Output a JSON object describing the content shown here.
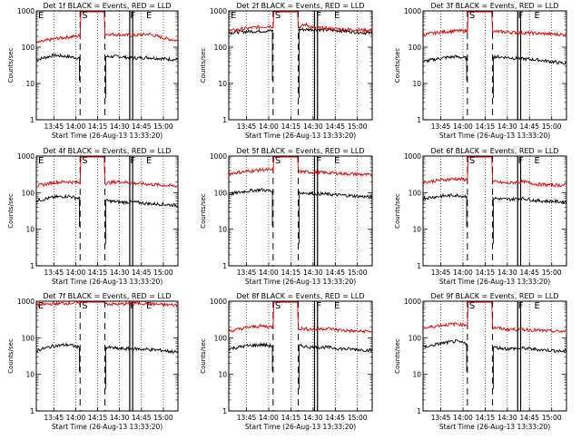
{
  "chart_data": [
    {
      "id": "p1",
      "type": "line",
      "title": "Det 1f BLACK = Events, RED = LLD",
      "xlabel": "Start Time (26-Aug-13 13:33:20)",
      "ylabel": "Counts/sec",
      "yscale": "log",
      "ylim": [
        1,
        1000
      ],
      "xlim": [
        "13:33",
        "15:10"
      ],
      "x_ticks": [
        "13:45",
        "14:00",
        "14:15",
        "14:30",
        "14:45",
        "15:00"
      ],
      "y_ticks": [
        "1",
        "10",
        "100",
        "1000"
      ],
      "markers": [
        {
          "label": "E",
          "time": "13:33"
        },
        {
          "label": "S",
          "time": "14:03"
        },
        {
          "label": "F",
          "time": "14:36"
        },
        {
          "label": "E",
          "time": "14:47"
        }
      ],
      "dashed_lines": [
        "14:03",
        "14:20"
      ],
      "solid_lines": [
        "14:37",
        "14:39"
      ],
      "series": [
        {
          "name": "Events",
          "color": "#000000",
          "x": [
            "13:33",
            "13:45",
            "13:55",
            "14:02",
            "14:21",
            "14:30",
            "14:40",
            "14:50",
            "15:00",
            "15:10"
          ],
          "y": [
            45,
            60,
            55,
            50,
            55,
            55,
            50,
            52,
            48,
            45
          ]
        },
        {
          "name": "LLD",
          "color": "#e00000",
          "x": [
            "13:33",
            "13:45",
            "13:55",
            "14:00",
            "14:20",
            "14:30",
            "14:40",
            "14:50",
            "15:00",
            "15:10"
          ],
          "y": [
            130,
            170,
            190,
            200,
            230,
            220,
            210,
            230,
            180,
            150
          ]
        }
      ]
    },
    {
      "id": "p2",
      "type": "line",
      "title": "Det 2f BLACK = Events, RED = LLD",
      "xlabel": "Start Time (26-Aug-13 13:33:20)",
      "ylabel": "Counts/sec",
      "yscale": "log",
      "ylim": [
        1,
        1000
      ],
      "xlim": [
        "13:33",
        "15:10"
      ],
      "x_ticks": [
        "13:45",
        "14:00",
        "14:15",
        "14:30",
        "14:45",
        "15:00"
      ],
      "y_ticks": [
        "1",
        "10",
        "100",
        "1000"
      ],
      "markers": [
        {
          "label": "E",
          "time": "13:33"
        },
        {
          "label": "S",
          "time": "14:03"
        },
        {
          "label": "F",
          "time": "14:31"
        },
        {
          "label": "E",
          "time": "14:43"
        }
      ],
      "dashed_lines": [
        "14:03",
        "14:20"
      ],
      "solid_lines": [
        "14:31",
        "14:33"
      ],
      "series": [
        {
          "name": "Events",
          "color": "#000000",
          "x": [
            "13:33",
            "13:45",
            "14:00",
            "14:15",
            "14:30",
            "14:45",
            "15:00",
            "15:10"
          ],
          "y": [
            250,
            270,
            280,
            300,
            310,
            290,
            260,
            240
          ]
        },
        {
          "name": "LLD",
          "color": "#e00000",
          "x": [
            "13:33",
            "13:45",
            "14:00",
            "14:20",
            "14:25",
            "14:30",
            "14:45",
            "15:00",
            "15:10"
          ],
          "y": [
            280,
            330,
            380,
            350,
            420,
            350,
            320,
            300,
            290
          ]
        }
      ]
    },
    {
      "id": "p3",
      "type": "line",
      "title": "Det 3f BLACK = Events, RED = LLD",
      "xlabel": "Start Time (26-Aug-13 13:33:20)",
      "ylabel": "Counts/sec",
      "yscale": "log",
      "ylim": [
        1,
        1000
      ],
      "xlim": [
        "13:33",
        "15:10"
      ],
      "x_ticks": [
        "13:45",
        "14:00",
        "14:15",
        "14:30",
        "14:45",
        "15:00"
      ],
      "y_ticks": [
        "1",
        "10",
        "100",
        "1000"
      ],
      "markers": [
        {
          "label": "S",
          "time": "14:03"
        },
        {
          "label": "F",
          "time": "14:36"
        },
        {
          "label": "E",
          "time": "14:47"
        }
      ],
      "dashed_lines": [
        "14:03",
        "14:20"
      ],
      "solid_lines": [
        "14:37",
        "14:39"
      ],
      "series": [
        {
          "name": "Events",
          "color": "#000000",
          "x": [
            "13:33",
            "13:45",
            "13:55",
            "14:02",
            "14:21",
            "14:30",
            "14:40",
            "14:50",
            "15:00",
            "15:10"
          ],
          "y": [
            40,
            50,
            55,
            50,
            55,
            52,
            48,
            45,
            40,
            35
          ]
        },
        {
          "name": "LLD",
          "color": "#e00000",
          "x": [
            "13:33",
            "13:45",
            "13:55",
            "14:00",
            "14:20",
            "14:30",
            "14:40",
            "14:50",
            "15:00",
            "15:10"
          ],
          "y": [
            220,
            260,
            280,
            280,
            270,
            260,
            250,
            240,
            230,
            220
          ]
        }
      ]
    },
    {
      "id": "p4",
      "type": "line",
      "title": "Det 4f BLACK = Events, RED = LLD",
      "xlabel": "Start Time (26-Aug-13 13:33:20)",
      "ylabel": "Counts/sec",
      "yscale": "log",
      "ylim": [
        1,
        1000
      ],
      "xlim": [
        "13:33",
        "15:10"
      ],
      "x_ticks": [
        "13:45",
        "14:00",
        "14:15",
        "14:30",
        "14:45",
        "15:00"
      ],
      "y_ticks": [
        "1",
        "10",
        "100",
        "1000"
      ],
      "markers": [
        {
          "label": "E",
          "time": "13:33"
        },
        {
          "label": "S",
          "time": "14:03"
        },
        {
          "label": "F",
          "time": "14:36"
        },
        {
          "label": "E",
          "time": "14:47"
        }
      ],
      "dashed_lines": [
        "14:03",
        "14:20"
      ],
      "solid_lines": [
        "14:37",
        "14:39"
      ],
      "series": [
        {
          "name": "Events",
          "color": "#000000",
          "x": [
            "13:33",
            "13:45",
            "13:55",
            "14:02",
            "14:21",
            "14:30",
            "14:40",
            "14:50",
            "15:00",
            "15:10"
          ],
          "y": [
            60,
            75,
            80,
            70,
            60,
            55,
            55,
            50,
            48,
            45
          ]
        },
        {
          "name": "LLD",
          "color": "#e00000",
          "x": [
            "13:33",
            "13:45",
            "13:55",
            "14:00",
            "14:20",
            "14:30",
            "14:40",
            "14:50",
            "15:00",
            "15:10"
          ],
          "y": [
            150,
            190,
            200,
            190,
            180,
            200,
            180,
            170,
            160,
            150
          ]
        }
      ]
    },
    {
      "id": "p5",
      "type": "line",
      "title": "Det 5f BLACK = Events, RED = LLD",
      "xlabel": "Start Time (26-Aug-13 13:33:20)",
      "ylabel": "Counts/sec",
      "yscale": "log",
      "ylim": [
        1,
        1000
      ],
      "xlim": [
        "13:33",
        "15:10"
      ],
      "x_ticks": [
        "13:45",
        "14:00",
        "14:15",
        "14:30",
        "14:45",
        "15:00"
      ],
      "y_ticks": [
        "1",
        "10",
        "100",
        "1000"
      ],
      "markers": [
        {
          "label": "S",
          "time": "14:03"
        },
        {
          "label": "F",
          "time": "14:31"
        },
        {
          "label": "E",
          "time": "14:43"
        }
      ],
      "dashed_lines": [
        "14:03",
        "14:20"
      ],
      "solid_lines": [
        "14:31",
        "14:33"
      ],
      "series": [
        {
          "name": "Events",
          "color": "#000000",
          "x": [
            "13:33",
            "13:45",
            "13:55",
            "14:02",
            "14:21",
            "14:30",
            "14:40",
            "14:50",
            "15:00",
            "15:10"
          ],
          "y": [
            90,
            110,
            120,
            110,
            100,
            95,
            90,
            85,
            80,
            75
          ]
        },
        {
          "name": "LLD",
          "color": "#e00000",
          "x": [
            "13:33",
            "13:45",
            "13:55",
            "14:00",
            "14:20",
            "14:30",
            "14:40",
            "14:50",
            "15:00",
            "15:10"
          ],
          "y": [
            330,
            380,
            420,
            420,
            380,
            360,
            350,
            330,
            320,
            300
          ]
        }
      ]
    },
    {
      "id": "p6",
      "type": "line",
      "title": "Det 6f BLACK = Events, RED = LLD",
      "xlabel": "Start Time (26-Aug-13 13:33:20)",
      "ylabel": "Counts/sec",
      "yscale": "log",
      "ylim": [
        1,
        1000
      ],
      "xlim": [
        "13:33",
        "15:10"
      ],
      "x_ticks": [
        "13:45",
        "14:00",
        "14:15",
        "14:30",
        "14:45",
        "15:00"
      ],
      "y_ticks": [
        "1",
        "10",
        "100",
        "1000"
      ],
      "markers": [
        {
          "label": "S",
          "time": "14:03"
        },
        {
          "label": "F",
          "time": "14:36"
        },
        {
          "label": "E",
          "time": "14:47"
        }
      ],
      "dashed_lines": [
        "14:03",
        "14:20"
      ],
      "solid_lines": [
        "14:37",
        "14:39"
      ],
      "series": [
        {
          "name": "Events",
          "color": "#000000",
          "x": [
            "13:33",
            "13:45",
            "13:55",
            "14:02",
            "14:21",
            "14:30",
            "14:40",
            "14:50",
            "15:00",
            "15:10"
          ],
          "y": [
            70,
            80,
            85,
            80,
            70,
            65,
            70,
            60,
            58,
            55
          ]
        },
        {
          "name": "LLD",
          "color": "#e00000",
          "x": [
            "13:33",
            "13:45",
            "13:55",
            "14:00",
            "14:20",
            "14:30",
            "14:40",
            "14:50",
            "15:00",
            "15:10"
          ],
          "y": [
            190,
            220,
            240,
            230,
            200,
            180,
            200,
            170,
            160,
            160
          ]
        }
      ]
    },
    {
      "id": "p7",
      "type": "line",
      "title": "Det 7f BLACK = Events, RED = LLD",
      "xlabel": "Start Time (26-Aug-13 13:33:20)",
      "ylabel": "Counts/sec",
      "yscale": "log",
      "ylim": [
        1,
        1000
      ],
      "xlim": [
        "13:33",
        "15:10"
      ],
      "x_ticks": [
        "13:45",
        "14:00",
        "14:15",
        "14:30",
        "14:45",
        "15:00"
      ],
      "y_ticks": [
        "1",
        "10",
        "100",
        "1000"
      ],
      "markers": [
        {
          "label": "E",
          "time": "13:33"
        },
        {
          "label": "S",
          "time": "14:03"
        },
        {
          "label": "F",
          "time": "14:36"
        },
        {
          "label": "E",
          "time": "14:47"
        }
      ],
      "dashed_lines": [
        "14:03",
        "14:20"
      ],
      "solid_lines": [
        "14:37",
        "14:39"
      ],
      "series": [
        {
          "name": "Events",
          "color": "#000000",
          "x": [
            "13:33",
            "13:45",
            "13:55",
            "14:02",
            "14:21",
            "14:30",
            "14:40",
            "14:50",
            "15:00",
            "15:10"
          ],
          "y": [
            45,
            60,
            65,
            55,
            55,
            50,
            50,
            48,
            45,
            40
          ]
        },
        {
          "name": "LLD",
          "color": "#e00000",
          "x": [
            "13:33",
            "13:45",
            "13:55",
            "14:00",
            "14:20",
            "14:30",
            "14:40",
            "14:50",
            "15:00",
            "15:10"
          ],
          "y": [
            800,
            850,
            880,
            900,
            850,
            820,
            900,
            850,
            800,
            780
          ]
        }
      ]
    },
    {
      "id": "p8",
      "type": "line",
      "title": "Det 8f BLACK = Events, RED = LLD",
      "xlabel": "Start Time (26-Aug-13 13:33:20)",
      "ylabel": "Counts/sec",
      "yscale": "log",
      "ylim": [
        1,
        1000
      ],
      "xlim": [
        "13:33",
        "15:10"
      ],
      "x_ticks": [
        "13:45",
        "14:00",
        "14:15",
        "14:30",
        "14:45",
        "15:00"
      ],
      "y_ticks": [
        "1",
        "10",
        "100",
        "1000"
      ],
      "markers": [
        {
          "label": "S",
          "time": "14:03"
        },
        {
          "label": "F",
          "time": "14:31"
        },
        {
          "label": "E",
          "time": "14:43"
        }
      ],
      "dashed_lines": [
        "14:03",
        "14:20"
      ],
      "solid_lines": [
        "14:31",
        "14:33"
      ],
      "series": [
        {
          "name": "Events",
          "color": "#000000",
          "x": [
            "13:33",
            "13:45",
            "13:55",
            "14:02",
            "14:21",
            "14:30",
            "14:40",
            "14:50",
            "15:00",
            "15:10"
          ],
          "y": [
            50,
            60,
            65,
            60,
            60,
            55,
            55,
            50,
            48,
            45
          ]
        },
        {
          "name": "LLD",
          "color": "#e00000",
          "x": [
            "13:33",
            "13:45",
            "13:55",
            "14:00",
            "14:20",
            "14:30",
            "14:40",
            "14:50",
            "15:00",
            "15:10"
          ],
          "y": [
            150,
            190,
            210,
            200,
            180,
            170,
            180,
            160,
            150,
            150
          ]
        }
      ]
    },
    {
      "id": "p9",
      "type": "line",
      "title": "Det 9f BLACK = Events, RED = LLD",
      "xlabel": "Start Time (26-Aug-13 13:33:20)",
      "ylabel": "Counts/sec",
      "yscale": "log",
      "ylim": [
        1,
        1000
      ],
      "xlim": [
        "13:33",
        "15:10"
      ],
      "x_ticks": [
        "13:45",
        "14:00",
        "14:15",
        "14:30",
        "14:45",
        "15:00"
      ],
      "y_ticks": [
        "1",
        "10",
        "100",
        "1000"
      ],
      "markers": [
        {
          "label": "S",
          "time": "14:03"
        },
        {
          "label": "F",
          "time": "14:36"
        },
        {
          "label": "E",
          "time": "14:47"
        }
      ],
      "dashed_lines": [
        "14:03",
        "14:20"
      ],
      "solid_lines": [
        "14:37",
        "14:39"
      ],
      "series": [
        {
          "name": "Events",
          "color": "#000000",
          "x": [
            "13:33",
            "13:45",
            "13:55",
            "14:02",
            "14:21",
            "14:30",
            "14:40",
            "14:50",
            "15:00",
            "15:10"
          ],
          "y": [
            55,
            70,
            80,
            70,
            55,
            50,
            52,
            48,
            45,
            42
          ]
        },
        {
          "name": "LLD",
          "color": "#e00000",
          "x": [
            "13:33",
            "13:45",
            "13:55",
            "14:00",
            "14:20",
            "14:30",
            "14:40",
            "14:50",
            "15:00",
            "15:10"
          ],
          "y": [
            180,
            220,
            240,
            230,
            190,
            170,
            170,
            160,
            150,
            150
          ]
        }
      ]
    }
  ]
}
